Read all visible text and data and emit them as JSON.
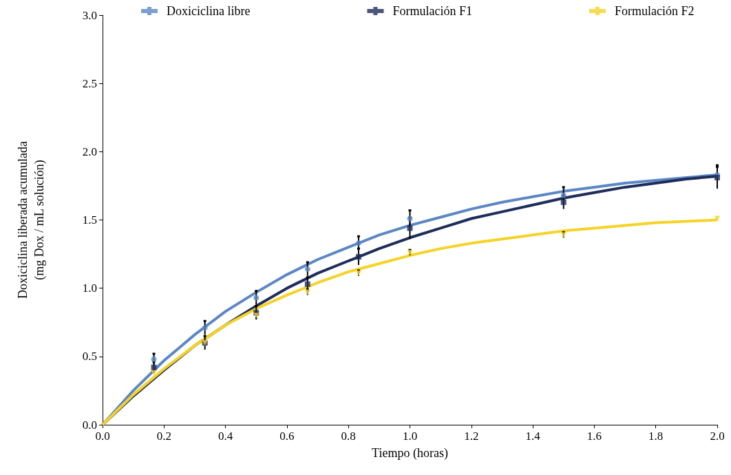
{
  "chart_data": {
    "type": "scatter",
    "xlabel": "Tiempo (horas)",
    "ylabel": "Doxiciclina liberada acumulada\n(mg Dox / mL solución)",
    "xlim": [
      0,
      2
    ],
    "xticks": [
      {
        "value": 0,
        "label": "0.0"
      },
      {
        "value": 0.2,
        "label": "0.2"
      },
      {
        "value": 0.4,
        "label": "0.4"
      },
      {
        "value": 0.6,
        "label": "0.6"
      },
      {
        "value": 0.8,
        "label": "0.8"
      },
      {
        "value": 1,
        "label": "1.0"
      },
      {
        "value": 1.2,
        "label": "1.2"
      },
      {
        "value": 1.4,
        "label": "1.4"
      },
      {
        "value": 1.6,
        "label": "1.6"
      },
      {
        "value": 1.8,
        "label": "1.8"
      },
      {
        "value": 2,
        "label": "2.0"
      }
    ],
    "ylim": [
      0,
      3
    ],
    "yticks": [
      {
        "value": 0,
        "label": "0.0"
      },
      {
        "value": 0.5,
        "label": "0.5"
      },
      {
        "value": 1,
        "label": "1.0"
      },
      {
        "value": 1.5,
        "label": "1.5"
      },
      {
        "value": 2,
        "label": "2.0"
      },
      {
        "value": 2.5,
        "label": "2.5"
      },
      {
        "value": 3,
        "label": "3.0"
      }
    ],
    "grid": false,
    "legend": "top",
    "series": [
      {
        "name": "Doxiciclina libre",
        "type": "scatter",
        "marker": "circle",
        "color": "#5b87c5",
        "x": [
          0.167,
          0.333,
          0.5,
          0.667,
          0.833,
          1,
          1.5,
          2
        ],
        "values": [
          0.48,
          0.71,
          0.93,
          1.14,
          1.33,
          1.51,
          1.68,
          1.83
        ],
        "errors": [
          0.04,
          0.05,
          0.05,
          0.05,
          0.05,
          0.06,
          0.06,
          0.07
        ]
      },
      {
        "name": "Formulación F1",
        "type": "scatter",
        "marker": "square",
        "color": "#1f2d5a",
        "x": [
          0.167,
          0.333,
          0.5,
          0.667,
          0.833,
          1,
          1.5,
          2
        ],
        "values": [
          0.42,
          0.6,
          0.82,
          1.03,
          1.23,
          1.44,
          1.63,
          1.81
        ],
        "errors": [
          0.04,
          0.05,
          0.05,
          0.05,
          0.06,
          0.08,
          0.05,
          0.08
        ]
      },
      {
        "name": "Formulación F2",
        "type": "scatter",
        "marker": "triangle",
        "color": "#f5d327",
        "x": [
          0.167,
          0.333,
          0.5,
          0.667,
          0.833,
          1,
          1.5,
          2
        ],
        "values": [
          0.38,
          0.6,
          0.8,
          0.97,
          1.11,
          1.26,
          1.39,
          1.51
        ],
        "errors": [
          null,
          null,
          0.02,
          0.02,
          0.02,
          0.02,
          0.02,
          null
        ]
      },
      {
        "type": "line",
        "marker": "none",
        "color": "#5b87c5",
        "x": [
          0,
          0.1,
          0.2,
          0.3,
          0.4,
          0.5,
          0.6,
          0.7,
          0.8,
          0.9,
          1,
          1.1,
          1.2,
          1.3,
          1.4,
          1.5,
          1.6,
          1.7,
          1.8,
          1.9,
          2
        ],
        "values": [
          0,
          0.25,
          0.47,
          0.66,
          0.83,
          0.97,
          1.1,
          1.21,
          1.3,
          1.39,
          1.46,
          1.52,
          1.58,
          1.63,
          1.67,
          1.71,
          1.74,
          1.77,
          1.79,
          1.81,
          1.83
        ]
      },
      {
        "type": "line",
        "marker": "none",
        "color": "#1f2d5a",
        "x": [
          0,
          0.1,
          0.2,
          0.3,
          0.4,
          0.5,
          0.6,
          0.7,
          0.8,
          0.9,
          1,
          1.1,
          1.2,
          1.3,
          1.4,
          1.5,
          1.6,
          1.7,
          1.8,
          1.9,
          2
        ],
        "values": [
          0,
          0.21,
          0.4,
          0.58,
          0.73,
          0.87,
          1,
          1.11,
          1.2,
          1.29,
          1.37,
          1.44,
          1.51,
          1.56,
          1.61,
          1.66,
          1.7,
          1.74,
          1.77,
          1.8,
          1.82
        ]
      },
      {
        "type": "line",
        "marker": "none",
        "color": "#f5d327",
        "x": [
          0,
          0.1,
          0.2,
          0.3,
          0.4,
          0.5,
          0.6,
          0.7,
          0.8,
          0.9,
          1,
          1.1,
          1.2,
          1.3,
          1.4,
          1.5,
          1.6,
          1.7,
          1.8,
          1.9,
          2
        ],
        "values": [
          0,
          0.22,
          0.41,
          0.58,
          0.73,
          0.85,
          0.95,
          1.04,
          1.12,
          1.18,
          1.24,
          1.29,
          1.33,
          1.36,
          1.39,
          1.42,
          1.44,
          1.46,
          1.48,
          1.49,
          1.5
        ]
      }
    ]
  }
}
